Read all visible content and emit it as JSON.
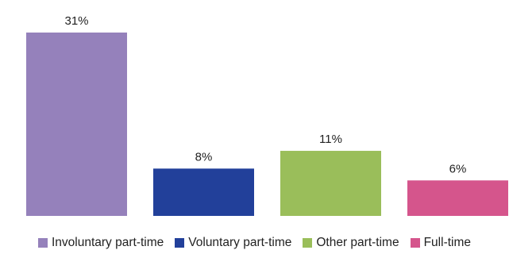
{
  "chart_data": {
    "type": "bar",
    "categories": [
      "Involuntary part-time",
      "Voluntary part-time",
      "Other part-time",
      "Full-time"
    ],
    "values": [
      31,
      8,
      11,
      6
    ],
    "value_labels": [
      "31%",
      "8%",
      "11%",
      "6%"
    ],
    "colors": [
      "#9581BB",
      "#22409A",
      "#9ABE5A",
      "#D5558C"
    ],
    "unit": "%",
    "ylim": [
      0,
      31
    ],
    "grid": false,
    "legend_position": "bottom",
    "title": "",
    "xlabel": "",
    "ylabel": ""
  }
}
